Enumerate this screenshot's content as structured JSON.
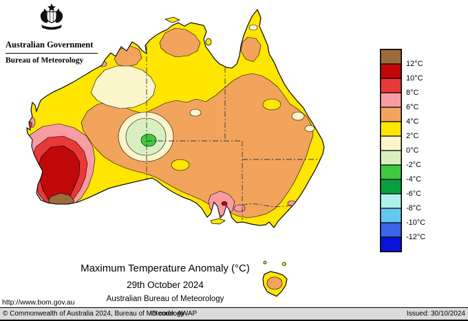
{
  "header": {
    "government_label": "Australian Government",
    "bureau_label": "Bureau of Meteorology"
  },
  "title_block": {
    "title": "Maximum Temperature Anomaly (°C)",
    "date": "29th October 2024",
    "organisation": "Australian Bureau of Meteorology"
  },
  "legend": {
    "unit": "°C",
    "colors": [
      "#9C6B3C",
      "#C00808",
      "#E83838",
      "#F79CA2",
      "#F2A45C",
      "#FFE600",
      "#FBF5CC",
      "#D8EFC2",
      "#3FC93F",
      "#089F40",
      "#AEF0EA",
      "#63C8F0",
      "#3C64E8",
      "#0A14D8"
    ],
    "labels": [
      "12°C",
      "10°C",
      "8°C",
      "6°C",
      "4°C",
      "2°C",
      "0°C",
      "-2°C",
      "-4°C",
      "-6°C",
      "-8°C",
      "-10°C",
      "-12°C"
    ]
  },
  "footer": {
    "url": "http://www.bom.gov.au",
    "copyright": "© Commonwealth of Australia 2024, Bureau of Meteorology",
    "id_code": "ID code: AWAP",
    "issued": "Issued: 30/10/2024"
  }
}
